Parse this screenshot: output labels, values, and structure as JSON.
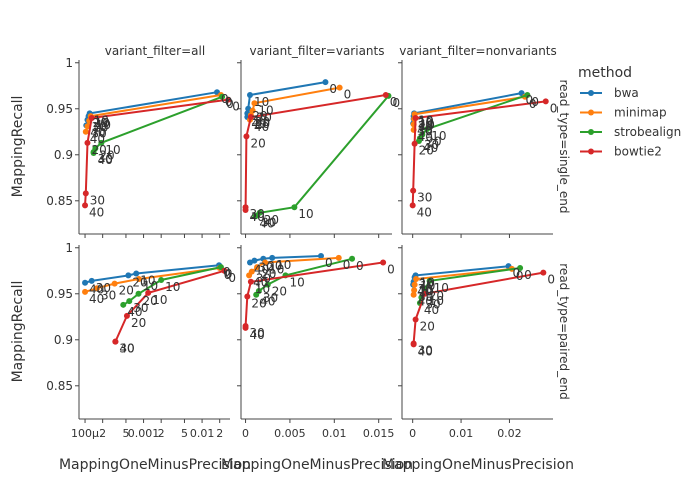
{
  "chart_data": {
    "type": "line",
    "legend": {
      "title": "method",
      "placement": "right",
      "entries": [
        {
          "name": "bwa",
          "color": "#1f77b4"
        },
        {
          "name": "minimap",
          "color": "#ff7f0e"
        },
        {
          "name": "strobealign",
          "color": "#2ca02c"
        },
        {
          "name": "bowtie2",
          "color": "#d62728"
        }
      ]
    },
    "y_label": "MappingRecall",
    "x_label": "MappingOneMinusPrecision",
    "row_labels": [
      "read_type=single_end",
      "read_type=paired_end"
    ],
    "col_labels": [
      "variant_filter=all",
      "variant_filter=variants",
      "variant_filter=nonvariants"
    ],
    "ylim": [
      0.815,
      1.003
    ],
    "y_ticks": [
      {
        "v": 0.85,
        "label": "0.85"
      },
      {
        "v": 0.9,
        "label": "0.9"
      },
      {
        "v": 0.95,
        "label": "0.95"
      },
      {
        "v": 1.0,
        "label": "1"
      }
    ],
    "columns": [
      {
        "scale": "log",
        "xlim": [
          8.2e-05,
          0.03
        ],
        "ticks": [
          {
            "v": 0.0001,
            "label": "100μ"
          },
          {
            "v": 0.0002,
            "label": "2"
          },
          {
            "v": 0.0005,
            "label": "5"
          },
          {
            "v": 0.001,
            "label": "0.001"
          },
          {
            "v": 0.002,
            "label": "2"
          },
          {
            "v": 0.005,
            "label": "5"
          },
          {
            "v": 0.01,
            "label": "0.01"
          },
          {
            "v": 0.02,
            "label": "2"
          }
        ]
      },
      {
        "scale": "linear",
        "xlim": [
          -0.0004,
          0.0165
        ],
        "ticks": [
          {
            "v": 0,
            "label": "0"
          },
          {
            "v": 0.005,
            "label": "0.005"
          },
          {
            "v": 0.01,
            "label": "0.01"
          },
          {
            "v": 0.015,
            "label": "0.015"
          }
        ]
      },
      {
        "scale": "linear",
        "xlim": [
          -0.002,
          0.029
        ],
        "ticks": [
          {
            "v": 0,
            "label": "0"
          },
          {
            "v": 0.01,
            "label": "0.01"
          },
          {
            "v": 0.02,
            "label": "0.02"
          }
        ]
      }
    ],
    "panels": [
      {
        "row": 0,
        "col": 0,
        "series": [
          {
            "name": "bwa",
            "points": [
              {
                "x": 0.018,
                "y": 0.968,
                "label": "0"
              },
              {
                "x": 0.00012,
                "y": 0.945,
                "label": "10"
              },
              {
                "x": 0.000115,
                "y": 0.942,
                "label": "20"
              },
              {
                "x": 0.00011,
                "y": 0.938,
                "label": "30"
              },
              {
                "x": 0.000105,
                "y": 0.932,
                "label": "40"
              }
            ]
          },
          {
            "name": "minimap",
            "points": [
              {
                "x": 0.021,
                "y": 0.965,
                "label": "0"
              },
              {
                "x": 0.000125,
                "y": 0.942,
                "label": "10"
              },
              {
                "x": 0.000118,
                "y": 0.937,
                "label": "20"
              },
              {
                "x": 0.00011,
                "y": 0.931,
                "label": "30"
              },
              {
                "x": 0.000103,
                "y": 0.925,
                "label": "40"
              }
            ]
          },
          {
            "name": "strobealign",
            "points": [
              {
                "x": 0.022,
                "y": 0.963,
                "label": "0"
              },
              {
                "x": 0.00019,
                "y": 0.913,
                "label": "10"
              },
              {
                "x": 0.00015,
                "y": 0.907,
                "label": "20"
              },
              {
                "x": 0.00014,
                "y": 0.903,
                "label": "30"
              },
              {
                "x": 0.00014,
                "y": 0.902,
                "label": "40"
              }
            ]
          },
          {
            "name": "bowtie2",
            "points": [
              {
                "x": 0.028,
                "y": 0.96,
                "label": "0"
              },
              {
                "x": 0.00013,
                "y": 0.94,
                "label": "10"
              },
              {
                "x": 0.00011,
                "y": 0.913,
                "label": "20"
              },
              {
                "x": 0.000103,
                "y": 0.858,
                "label": "30"
              },
              {
                "x": 0.0001,
                "y": 0.845,
                "label": "40"
              }
            ]
          }
        ]
      },
      {
        "row": 0,
        "col": 1,
        "series": [
          {
            "name": "bwa",
            "points": [
              {
                "x": 0.009,
                "y": 0.979,
                "label": "0"
              },
              {
                "x": 0.0005,
                "y": 0.965,
                "label": "10"
              },
              {
                "x": 0.0003,
                "y": 0.95,
                "label": "20"
              },
              {
                "x": 0.0002,
                "y": 0.945,
                "label": "30"
              },
              {
                "x": 0.0002,
                "y": 0.941,
                "label": "40"
              }
            ]
          },
          {
            "name": "minimap",
            "points": [
              {
                "x": 0.0106,
                "y": 0.973,
                "label": "0"
              },
              {
                "x": 0.001,
                "y": 0.956,
                "label": "10"
              },
              {
                "x": 0.0008,
                "y": 0.948,
                "label": "20"
              },
              {
                "x": 0.0006,
                "y": 0.943,
                "label": "30"
              },
              {
                "x": 0.0005,
                "y": 0.938,
                "label": "40"
              }
            ]
          },
          {
            "name": "strobealign",
            "points": [
              {
                "x": 0.0161,
                "y": 0.964,
                "label": "0"
              },
              {
                "x": 0.0055,
                "y": 0.843,
                "label": "10"
              },
              {
                "x": 0.0016,
                "y": 0.837,
                "label": "20"
              },
              {
                "x": 0.0013,
                "y": 0.834,
                "label": "30"
              },
              {
                "x": 0.0011,
                "y": 0.833,
                "label": "40"
              }
            ]
          },
          {
            "name": "bowtie2",
            "points": [
              {
                "x": 0.0158,
                "y": 0.965,
                "label": "0"
              },
              {
                "x": 0.0006,
                "y": 0.941,
                "label": "10"
              },
              {
                "x": 0.0001,
                "y": 0.92,
                "label": "20"
              },
              {
                "x": 0.0,
                "y": 0.843,
                "label": "30"
              },
              {
                "x": 0.0,
                "y": 0.84,
                "label": "40"
              }
            ]
          }
        ]
      },
      {
        "row": 0,
        "col": 2,
        "series": [
          {
            "name": "bwa",
            "points": [
              {
                "x": 0.0225,
                "y": 0.967,
                "label": "0"
              },
              {
                "x": 0.0003,
                "y": 0.945,
                "label": "10"
              },
              {
                "x": 0.0002,
                "y": 0.942,
                "label": "20"
              },
              {
                "x": 0.0002,
                "y": 0.939,
                "label": "30"
              },
              {
                "x": 0.0001,
                "y": 0.934,
                "label": "40"
              }
            ]
          },
          {
            "name": "minimap",
            "points": [
              {
                "x": 0.0232,
                "y": 0.963,
                "label": "0"
              },
              {
                "x": 0.0004,
                "y": 0.944,
                "label": "10"
              },
              {
                "x": 0.0003,
                "y": 0.939,
                "label": "20"
              },
              {
                "x": 0.0002,
                "y": 0.933,
                "label": "30"
              },
              {
                "x": 0.0002,
                "y": 0.927,
                "label": "40"
              }
            ]
          },
          {
            "name": "strobealign",
            "points": [
              {
                "x": 0.0237,
                "y": 0.965,
                "label": "0"
              },
              {
                "x": 0.003,
                "y": 0.928,
                "label": "10"
              },
              {
                "x": 0.002,
                "y": 0.922,
                "label": "20"
              },
              {
                "x": 0.0015,
                "y": 0.918,
                "label": "30"
              },
              {
                "x": 0.0013,
                "y": 0.915,
                "label": "40"
              }
            ]
          },
          {
            "name": "bowtie2",
            "points": [
              {
                "x": 0.0275,
                "y": 0.958,
                "label": "0"
              },
              {
                "x": 0.0006,
                "y": 0.94,
                "label": "10"
              },
              {
                "x": 0.0004,
                "y": 0.912,
                "label": "20"
              },
              {
                "x": 0.0001,
                "y": 0.861,
                "label": "30"
              },
              {
                "x": 0.0,
                "y": 0.845,
                "label": "40"
              }
            ]
          }
        ]
      },
      {
        "row": 1,
        "col": 0,
        "series": [
          {
            "name": "bwa",
            "points": [
              {
                "x": 0.0195,
                "y": 0.981,
                "label": "0"
              },
              {
                "x": 0.00075,
                "y": 0.972,
                "label": "10"
              },
              {
                "x": 0.00055,
                "y": 0.97,
                "label": "20"
              },
              {
                "x": 0.00013,
                "y": 0.964,
                "label": "30"
              },
              {
                "x": 0.0001,
                "y": 0.962,
                "label": "40"
              }
            ]
          },
          {
            "name": "minimap",
            "points": [
              {
                "x": 0.02,
                "y": 0.978,
                "label": "0"
              },
              {
                "x": 0.00083,
                "y": 0.966,
                "label": "10"
              },
              {
                "x": 0.00032,
                "y": 0.961,
                "label": "20"
              },
              {
                "x": 0.00016,
                "y": 0.956,
                "label": "30"
              },
              {
                "x": 0.0001,
                "y": 0.952,
                "label": "40"
              }
            ]
          },
          {
            "name": "strobealign",
            "points": [
              {
                "x": 0.021,
                "y": 0.979,
                "label": "0"
              },
              {
                "x": 0.002,
                "y": 0.965,
                "label": "10"
              },
              {
                "x": 0.00082,
                "y": 0.95,
                "label": "20"
              },
              {
                "x": 0.00057,
                "y": 0.942,
                "label": "30"
              },
              {
                "x": 0.00045,
                "y": 0.938,
                "label": "40"
              }
            ]
          },
          {
            "name": "bowtie2",
            "points": [
              {
                "x": 0.024,
                "y": 0.975,
                "label": "0"
              },
              {
                "x": 0.0012,
                "y": 0.951,
                "label": "10"
              },
              {
                "x": 0.00052,
                "y": 0.926,
                "label": "20"
              },
              {
                "x": 0.00033,
                "y": 0.898,
                "label": "30"
              },
              {
                "x": 0.00033,
                "y": 0.898,
                "label": "40"
              }
            ]
          }
        ]
      },
      {
        "row": 1,
        "col": 1,
        "series": [
          {
            "name": "bwa",
            "points": [
              {
                "x": 0.0085,
                "y": 0.991,
                "label": "0"
              },
              {
                "x": 0.003,
                "y": 0.989,
                "label": "10"
              },
              {
                "x": 0.002,
                "y": 0.988,
                "label": "20"
              },
              {
                "x": 0.001,
                "y": 0.986,
                "label": "30"
              },
              {
                "x": 0.0005,
                "y": 0.984,
                "label": "40"
              }
            ]
          },
          {
            "name": "minimap",
            "points": [
              {
                "x": 0.0105,
                "y": 0.989,
                "label": "0"
              },
              {
                "x": 0.0022,
                "y": 0.984,
                "label": "10"
              },
              {
                "x": 0.0013,
                "y": 0.979,
                "label": "20"
              },
              {
                "x": 0.0007,
                "y": 0.974,
                "label": "30"
              },
              {
                "x": 0.0004,
                "y": 0.97,
                "label": "40"
              }
            ]
          },
          {
            "name": "strobealign",
            "points": [
              {
                "x": 0.012,
                "y": 0.988,
                "label": "0"
              },
              {
                "x": 0.0045,
                "y": 0.97,
                "label": "10"
              },
              {
                "x": 0.0025,
                "y": 0.96,
                "label": "20"
              },
              {
                "x": 0.0015,
                "y": 0.953,
                "label": "30"
              },
              {
                "x": 0.0012,
                "y": 0.949,
                "label": "40"
              }
            ]
          },
          {
            "name": "bowtie2",
            "points": [
              {
                "x": 0.0155,
                "y": 0.984,
                "label": "0"
              },
              {
                "x": 0.0006,
                "y": 0.963,
                "label": "10"
              },
              {
                "x": 0.0002,
                "y": 0.947,
                "label": "20"
              },
              {
                "x": 0.0,
                "y": 0.915,
                "label": "30"
              },
              {
                "x": 0.0,
                "y": 0.913,
                "label": "40"
              }
            ]
          }
        ]
      },
      {
        "row": 1,
        "col": 2,
        "series": [
          {
            "name": "bwa",
            "points": [
              {
                "x": 0.0198,
                "y": 0.98,
                "label": "0"
              },
              {
                "x": 0.0006,
                "y": 0.97,
                "label": "10"
              },
              {
                "x": 0.0004,
                "y": 0.968,
                "label": "20"
              },
              {
                "x": 0.0002,
                "y": 0.963,
                "label": "30"
              },
              {
                "x": 0.0001,
                "y": 0.96,
                "label": "40"
              }
            ]
          },
          {
            "name": "minimap",
            "points": [
              {
                "x": 0.0205,
                "y": 0.977,
                "label": "0"
              },
              {
                "x": 0.0007,
                "y": 0.966,
                "label": "10"
              },
              {
                "x": 0.0004,
                "y": 0.96,
                "label": "20"
              },
              {
                "x": 0.0003,
                "y": 0.954,
                "label": "30"
              },
              {
                "x": 0.0002,
                "y": 0.949,
                "label": "40"
              }
            ]
          },
          {
            "name": "strobealign",
            "points": [
              {
                "x": 0.0222,
                "y": 0.978,
                "label": "0"
              },
              {
                "x": 0.0035,
                "y": 0.964,
                "label": "10"
              },
              {
                "x": 0.0025,
                "y": 0.955,
                "label": "20"
              },
              {
                "x": 0.0018,
                "y": 0.946,
                "label": "30"
              },
              {
                "x": 0.0015,
                "y": 0.94,
                "label": "40"
              }
            ]
          },
          {
            "name": "bowtie2",
            "points": [
              {
                "x": 0.027,
                "y": 0.973,
                "label": "0"
              },
              {
                "x": 0.0025,
                "y": 0.95,
                "label": "10"
              },
              {
                "x": 0.0006,
                "y": 0.922,
                "label": "20"
              },
              {
                "x": 0.0002,
                "y": 0.896,
                "label": "30"
              },
              {
                "x": 0.0002,
                "y": 0.895,
                "label": "40"
              }
            ]
          }
        ]
      }
    ]
  }
}
